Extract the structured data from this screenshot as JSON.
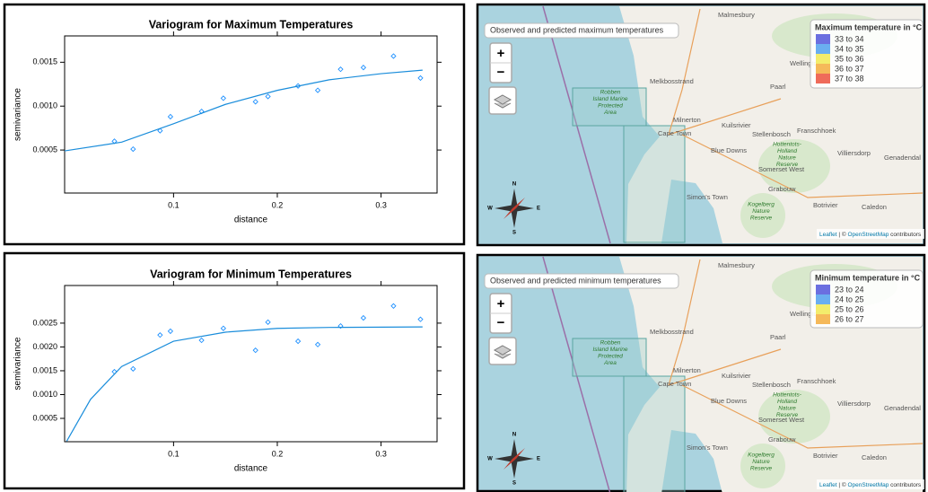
{
  "chart_data": [
    {
      "type": "scatter",
      "title": "Variogram for Maximum Temperatures",
      "x_label": "distance",
      "y_label": "semivariance",
      "xlim": [
        -0.005,
        0.354
      ],
      "xticks": [
        0.1,
        0.2,
        0.3
      ],
      "ylim": [
        1e-05,
        0.0018
      ],
      "yticks": [
        0.0005,
        {
          "value": 0.001,
          "label": "0.0010"
        },
        0.0015
      ],
      "series": [
        {
          "type": "scatter",
          "color": "#1e90ff",
          "x": [
            0.043,
            0.061,
            0.087,
            0.097,
            0.127,
            0.148,
            0.179,
            0.191,
            0.22,
            0.239,
            0.261,
            0.283,
            0.312,
            0.338
          ],
          "values": [
            0.0006,
            0.00051,
            0.00072,
            0.00088,
            0.00094,
            0.00109,
            0.00105,
            0.00111,
            0.00123,
            0.00118,
            0.00142,
            0.00144,
            0.00157,
            0.00132
          ]
        },
        {
          "type": "line",
          "color": "#1a8ddb",
          "x": [
            -0.005,
            0.05,
            0.1,
            0.15,
            0.2,
            0.25,
            0.3,
            0.34
          ],
          "values": [
            0.00049,
            0.00059,
            0.0008,
            0.00102,
            0.00118,
            0.0013,
            0.00137,
            0.00141
          ]
        }
      ]
    },
    {
      "type": "scatter",
      "title": "Variogram for Minimum Temperatures",
      "x_label": "distance",
      "y_label": "semivariance",
      "xlim": [
        -0.005,
        0.354
      ],
      "xticks": [
        0.1,
        0.2,
        0.3
      ],
      "ylim": [
        1e-05,
        0.00329
      ],
      "yticks": [
        0.0005,
        {
          "value": 0.001,
          "label": "0.0010"
        },
        0.0015,
        {
          "value": 0.002,
          "label": "0.0020"
        },
        0.0025
      ],
      "series": [
        {
          "type": "scatter",
          "color": "#1e90ff",
          "x": [
            0.043,
            0.061,
            0.087,
            0.097,
            0.127,
            0.148,
            0.179,
            0.191,
            0.22,
            0.239,
            0.261,
            0.283,
            0.312,
            0.338
          ],
          "values": [
            0.00148,
            0.00154,
            0.00225,
            0.00233,
            0.00214,
            0.00239,
            0.00193,
            0.00252,
            0.00212,
            0.00205,
            0.00244,
            0.00261,
            0.00286,
            0.00258
          ]
        },
        {
          "type": "line",
          "color": "#1a8ddb",
          "x": [
            -0.003,
            0.02,
            0.05,
            0.1,
            0.15,
            0.2,
            0.25,
            0.34
          ],
          "values": [
            2e-05,
            0.0009,
            0.00159,
            0.00212,
            0.00231,
            0.00239,
            0.00241,
            0.00242
          ]
        }
      ]
    }
  ],
  "maps": [
    {
      "title": "Observed and predicted maximum temperatures",
      "legend_title": "Maximum temperature in °C",
      "legend": [
        {
          "label": "33 to 34",
          "color": "#6b6fe0"
        },
        {
          "label": "34 to 35",
          "color": "#6aaef0"
        },
        {
          "label": "35 to 36",
          "color": "#f3ec6c"
        },
        {
          "label": "36 to 37",
          "color": "#f5b95a"
        },
        {
          "label": "37 to 38",
          "color": "#ef6b5a"
        }
      ]
    },
    {
      "title": "Observed and predicted minimum temperatures",
      "legend_title": "Minimum temperature in °C",
      "legend": [
        {
          "label": "23 to 24",
          "color": "#6b6fe0"
        },
        {
          "label": "24 to 25",
          "color": "#6aaef0"
        },
        {
          "label": "25 to 26",
          "color": "#f3ec6c"
        },
        {
          "label": "26 to 27",
          "color": "#f5b95a"
        }
      ]
    }
  ],
  "zoom_in": "+",
  "zoom_out": "−",
  "places": [
    "Malmesbury",
    "Wellington",
    "Paarl",
    "Melkbosstrand",
    "Milnerton",
    "Cape Town",
    "Kuilsrivier",
    "Stellenbosch",
    "Franschhoek",
    "Blue Downs",
    "Villiersdorp",
    "Genadendal",
    "Somerset West",
    "Grabouw",
    "Botrivier",
    "Caledon",
    "Simon's Town"
  ],
  "reserves": [
    [
      "Robben",
      "Island Marine",
      "Protected",
      "Area"
    ],
    [
      "Hottentots-",
      "Holland",
      "Nature",
      "Reserve"
    ],
    [
      "Kogelberg",
      "Nature",
      "Reserve"
    ]
  ],
  "compass": [
    "N",
    "S",
    "E",
    "W"
  ],
  "attribution": {
    "leaflet": "Leaflet",
    "separator": "| ©",
    "osm": "OpenStreetMap",
    "rest": "contributors"
  }
}
